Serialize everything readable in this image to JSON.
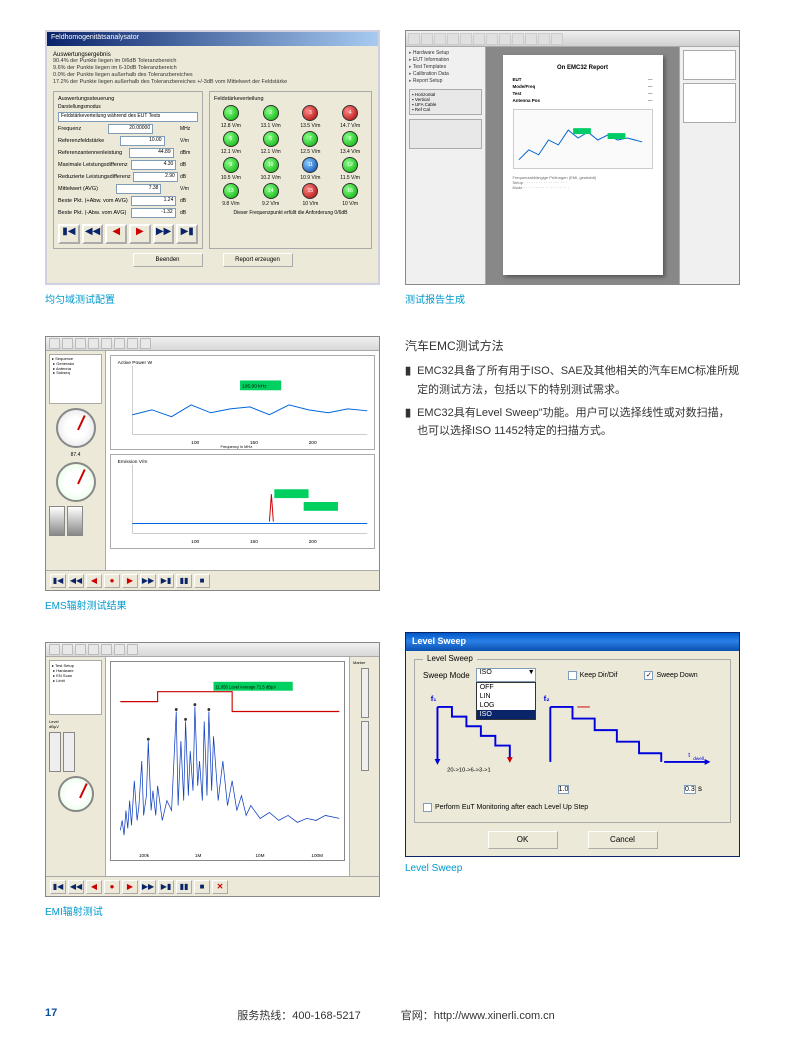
{
  "screenshot1": {
    "title": "Feldhomogenitätsanalysator",
    "auswertung_label": "Auswertungsergebnis",
    "eval_lines": [
      "90.4% der Punkte liegen im 0/6dB Toleranzbereich",
      "9.6% der Punkte liegen im 6-10dB Toleranzbereich",
      "0.0% der Punkte liegen außerhalb des Toleranzbereiches",
      "17.2% der Punkte liegen außerhalb des Toleranzbereiches +/-3dB vom Mittelwert der Feldstärke"
    ],
    "left_group": "Auswertungssteuerung",
    "left_sub": "Darstellungsmodus",
    "dropdown_value": "Feldstärkeverteilung während des EUT Tests",
    "params": [
      {
        "label": "Frequenz",
        "value": "20.00000",
        "unit": "MHz"
      },
      {
        "label": "Referenzfeldstärke",
        "value": "10.00",
        "unit": "V/m"
      },
      {
        "label": "Referenzantennenleistung",
        "value": "44.89",
        "unit": "dBm"
      },
      {
        "label": "Maximale Leistungsdifferenz",
        "value": "4.30",
        "unit": "dB"
      },
      {
        "label": "Reduzierte Leistungsdifferenz",
        "value": "2.90",
        "unit": "dB"
      },
      {
        "label": "Mittelwert (AVG)",
        "value": "7.38",
        "unit": "V/m"
      },
      {
        "label": "Beste Pkt. (+Abw. vom AVG)",
        "value": "1.24",
        "unit": "dB"
      },
      {
        "label": "Beste Pkt. (-Abw. vom AVG)",
        "value": "-1.32",
        "unit": "dB"
      }
    ],
    "right_group": "Feldstärkeverteilung",
    "leds": [
      {
        "n": 1,
        "c": "g",
        "v": "12.8 V/m"
      },
      {
        "n": 2,
        "c": "g",
        "v": "13.1 V/m"
      },
      {
        "n": 3,
        "c": "r",
        "v": "13.5 V/m"
      },
      {
        "n": 4,
        "c": "r",
        "v": "14.7 V/m"
      },
      {
        "n": 5,
        "c": "g",
        "v": "12.1 V/m"
      },
      {
        "n": 6,
        "c": "g",
        "v": "12.1 V/m"
      },
      {
        "n": 7,
        "c": "g",
        "v": "12.5 V/m"
      },
      {
        "n": 8,
        "c": "g",
        "v": "13.4 V/m"
      },
      {
        "n": 9,
        "c": "g",
        "v": "10.5 V/m"
      },
      {
        "n": 10,
        "c": "g",
        "v": "10.2 V/m"
      },
      {
        "n": 11,
        "c": "b",
        "v": "10.9 V/m"
      },
      {
        "n": 12,
        "c": "g",
        "v": "11.5 V/m"
      },
      {
        "n": 13,
        "c": "g",
        "v": "9.8 V/m"
      },
      {
        "n": 14,
        "c": "g",
        "v": "9.2 V/m"
      },
      {
        "n": 15,
        "c": "r",
        "v": "10 V/m"
      },
      {
        "n": 16,
        "c": "g",
        "v": "10 V/m"
      }
    ],
    "footer_note": "Dieser Frequenzpunkt erfüllt die Anforderung 0/6dB",
    "btn_beenden": "Beenden",
    "btn_report": "Report erzeugen",
    "caption": "均匀域测试配置"
  },
  "screenshot2": {
    "report_title": "On EMC32 Report",
    "tree_items": [
      "Hardware Setup",
      "EUT Information",
      "Test Templates",
      "Calibration Data",
      "Report Setup"
    ],
    "panel_items": [
      "Horizontal",
      "Vertical",
      "UFA Cable",
      "Ref Cal"
    ],
    "report_sections": [
      "EUT",
      "Mode/Freq",
      "Test",
      "Antenna Pos"
    ],
    "chart": {
      "type": "line",
      "xrange": [
        30,
        1000
      ],
      "yrange": [
        0,
        50
      ],
      "series_color": "#0066cc",
      "marker_color": "#00cc66",
      "bg": "#ffffff"
    },
    "caption": "测试报告生成"
  },
  "screenshot3": {
    "chart1": {
      "title": "Active Power W",
      "type": "line",
      "xrange": [
        50,
        250
      ],
      "yrange": [
        0,
        30
      ],
      "xticks": [
        100,
        150,
        200
      ],
      "line_color": "#0066dd",
      "callout_bg": "#00d060",
      "callout_text": "195.00 kHz"
    },
    "chart2": {
      "title": "Emission V/m",
      "type": "line",
      "xrange": [
        50,
        250
      ],
      "yrange": [
        0,
        15
      ],
      "line_color": "#0066dd",
      "callout_bg": "#00d060"
    },
    "caption": "EMS辐射测试结果"
  },
  "screenshot4": {
    "spectrum": {
      "type": "line",
      "xscale": "log",
      "xrange": [
        0.01,
        100
      ],
      "yrange": [
        -20,
        80
      ],
      "xticks": [
        "100k",
        "1M",
        "10M",
        "100M"
      ],
      "trace_color": "#1040c0",
      "limit_color": "#cc0000",
      "callout_bg": "#00d060",
      "callout_text": "11.050 Level Average 71.5 dBμV"
    },
    "caption": "EMI辐射测试"
  },
  "text_section": {
    "heading": "汽车EMC测试方法",
    "bullets": [
      "EMC32具备了所有用于ISO、SAE及其他相关的汽车EMC标准所规定的测试方法，包括以下的特别测试需求。",
      "EMC32具有Level Sweep\"功能。用户可以选择线性或对数扫描，也可以选择ISO 11452特定的扫描方式。"
    ]
  },
  "screenshot5": {
    "title": "Level Sweep",
    "group_label": "Level Sweep",
    "mode_label": "Sweep Mode",
    "mode_value": "ISO",
    "mode_options": [
      "OFF",
      "LIN",
      "LOG",
      "ISO"
    ],
    "cb_keep": "Keep Dir/Dif",
    "cb_sweepdown": "Sweep Down",
    "cb_sweepdown_checked": true,
    "diagram": {
      "f1_label": "f₁",
      "f2_label": "f₂",
      "tdwell_label": "t_dwell",
      "step_label": "20->10->6->3->1",
      "line_color": "#0000dd",
      "marker_color": "#cc0000"
    },
    "num_left": "1.0",
    "num_right": "0.3",
    "num_unit": "s",
    "cb_perform": "Perform EuT Monitoring after each Level Up Step",
    "btn_ok": "OK",
    "btn_cancel": "Cancel",
    "caption": "Level Sweep"
  },
  "footer": {
    "page": "17",
    "hotline_label": "服务热线：",
    "hotline": "400-168-5217",
    "web_label": "官网：",
    "web": "http://www.xinerli.com.cn"
  }
}
